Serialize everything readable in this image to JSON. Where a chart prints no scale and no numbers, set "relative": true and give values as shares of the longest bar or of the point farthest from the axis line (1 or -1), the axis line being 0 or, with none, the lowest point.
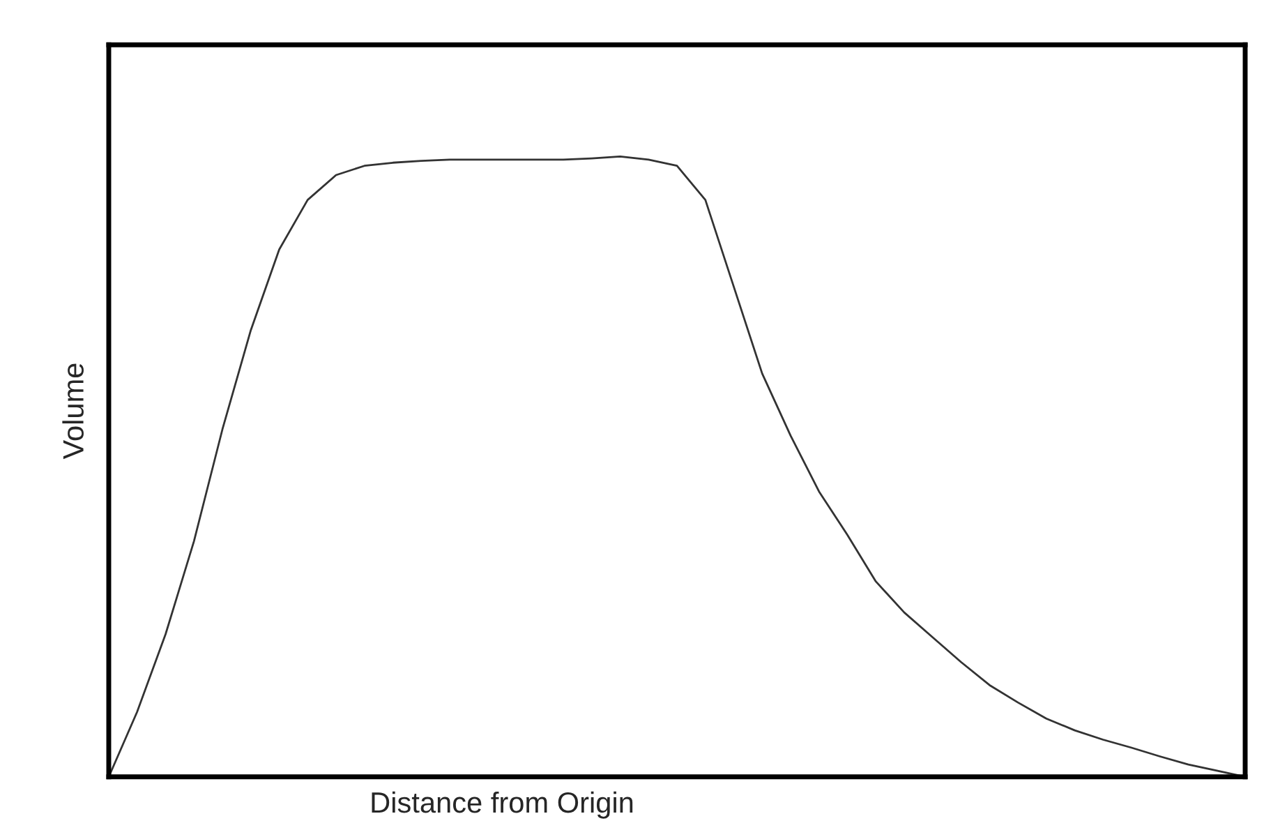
{
  "chart_data": {
    "type": "line",
    "relative": true,
    "xlabel": "Distance from Origin",
    "ylabel": "Volume",
    "categories": [
      null,
      null,
      null,
      null,
      null,
      null,
      null,
      null,
      null,
      null,
      null,
      null,
      null,
      null,
      null,
      null,
      null,
      null,
      null,
      null,
      null,
      null,
      null,
      null,
      null,
      null,
      null,
      null,
      null,
      null,
      null,
      null,
      null,
      null,
      null,
      null,
      null,
      null,
      null,
      null,
      null
    ],
    "series": [
      {
        "color": "#333333",
        "values": [
          0,
          0.105,
          0.23,
          0.38,
          0.56,
          0.72,
          0.85,
          0.93,
          0.97,
          0.985,
          0.99,
          0.993,
          0.995,
          0.995,
          0.995,
          0.995,
          0.995,
          0.997,
          1.0,
          0.995,
          0.985,
          0.93,
          0.79,
          0.65,
          0.55,
          0.46,
          0.39,
          0.315,
          0.265,
          0.225,
          0.185,
          0.148,
          0.12,
          0.094,
          0.075,
          0.06,
          0.047,
          0.033,
          0.02,
          0.01,
          0
        ]
      }
    ],
    "marker": "none",
    "line_style": "solid"
  }
}
